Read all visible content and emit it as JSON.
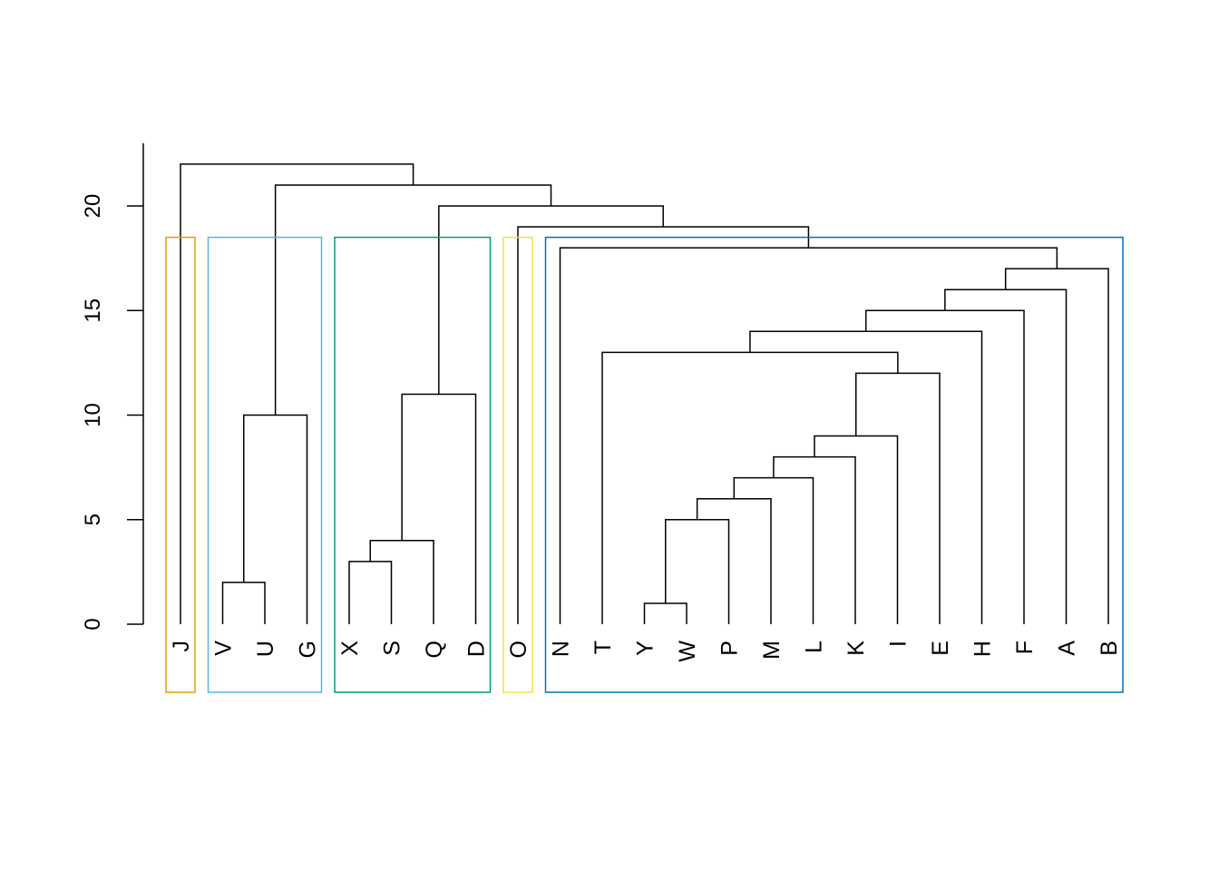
{
  "chart_data": {
    "type": "dendrogram",
    "title": "",
    "xlabel": "",
    "ylabel": "",
    "ylim": [
      0,
      23
    ],
    "yticks": [
      0,
      5,
      10,
      15,
      20
    ],
    "labels": [
      "J",
      "V",
      "U",
      "G",
      "X",
      "S",
      "Q",
      "D",
      "O",
      "N",
      "T",
      "Y",
      "W",
      "P",
      "M",
      "L",
      "K",
      "I",
      "E",
      "H",
      "F",
      "A",
      "B"
    ],
    "merges": [
      {
        "a": "Y",
        "b": "W",
        "height": 1
      },
      {
        "a": "V",
        "b": "U",
        "height": 2
      },
      {
        "a": "X",
        "b": "S",
        "height": 3
      },
      {
        "a": "#3",
        "b": "Q",
        "height": 4
      },
      {
        "a": "#1",
        "b": "P",
        "height": 5
      },
      {
        "a": "#5",
        "b": "M",
        "height": 6
      },
      {
        "a": "#6",
        "b": "L",
        "height": 7
      },
      {
        "a": "#7",
        "b": "K",
        "height": 8
      },
      {
        "a": "#8",
        "b": "I",
        "height": 9
      },
      {
        "a": "#2",
        "b": "G",
        "height": 10
      },
      {
        "a": "#4",
        "b": "D",
        "height": 11
      },
      {
        "a": "#9",
        "b": "E",
        "height": 12
      },
      {
        "a": "T",
        "b": "#12",
        "height": 13
      },
      {
        "a": "#13",
        "b": "H",
        "height": 14
      },
      {
        "a": "#14",
        "b": "F",
        "height": 15
      },
      {
        "a": "#15",
        "b": "A",
        "height": 16
      },
      {
        "a": "#16",
        "b": "B",
        "height": 17
      },
      {
        "a": "N",
        "b": "#17",
        "height": 18
      },
      {
        "a": "O",
        "b": "#18",
        "height": 19
      },
      {
        "a": "#11",
        "b": "#19",
        "height": 20
      },
      {
        "a": "#10",
        "b": "#20",
        "height": 21
      },
      {
        "a": "J",
        "b": "#21",
        "height": 22
      }
    ],
    "cluster_rects": {
      "k": 5,
      "cut_height": 18.5,
      "groups": [
        {
          "first": "J",
          "last": "J",
          "color": "#E69F00"
        },
        {
          "first": "V",
          "last": "G",
          "color": "#56B4E9"
        },
        {
          "first": "X",
          "last": "D",
          "color": "#009E73"
        },
        {
          "first": "O",
          "last": "O",
          "color": "#F0E442"
        },
        {
          "first": "N",
          "last": "B",
          "color": "#0072B2"
        }
      ]
    }
  }
}
